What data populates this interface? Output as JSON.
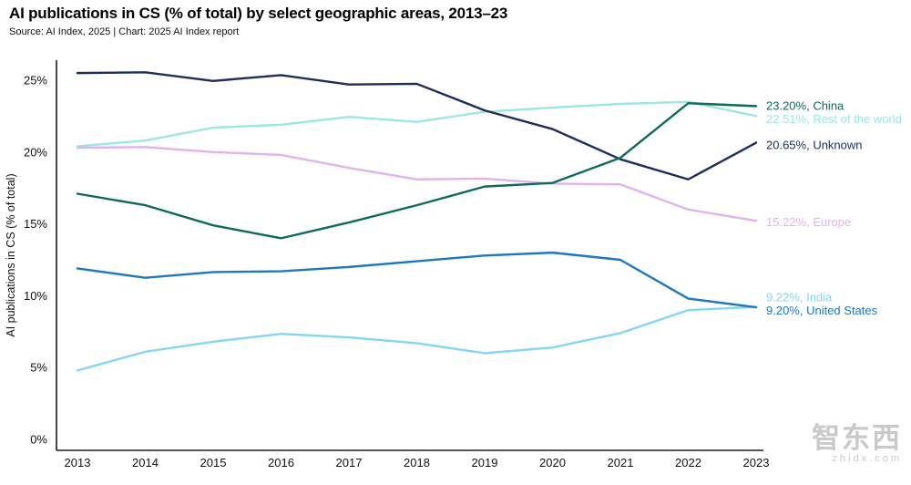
{
  "header": {
    "title": "AI publications in CS (% of total) by select geographic areas, 2013–23",
    "source": "Source: AI Index, 2025 | Chart: 2025 AI Index report"
  },
  "watermark": {
    "name": "智东西",
    "domain": "zhidx.com"
  },
  "chart_data": {
    "type": "line",
    "title": "AI publications in CS (% of total) by select geographic areas, 2013–23",
    "xlabel": "",
    "ylabel": "AI publications in CS (% of total)",
    "x": [
      2013,
      2014,
      2015,
      2016,
      2017,
      2018,
      2019,
      2020,
      2021,
      2022,
      2023
    ],
    "yticks": [
      0,
      5,
      10,
      15,
      20,
      25
    ],
    "ylim": [
      0,
      26.5
    ],
    "grid": false,
    "legend_position": "right-end-labels",
    "series": [
      {
        "id": "rest-of-world",
        "name": "Rest of the world",
        "color": "#9ce6e4",
        "end_label": "22.51%, Rest of the world",
        "label_dy": 4,
        "values": [
          20.4,
          20.8,
          21.7,
          21.9,
          22.45,
          22.1,
          22.8,
          23.1,
          23.35,
          23.5,
          22.51
        ]
      },
      {
        "id": "europe",
        "name": "Europe",
        "color": "#e0b3ef",
        "end_label": "15.22%, Europe",
        "label_dy": 2,
        "values": [
          20.3,
          20.35,
          20.0,
          19.8,
          18.9,
          18.1,
          18.15,
          17.8,
          17.75,
          16.0,
          15.22
        ]
      },
      {
        "id": "unknown",
        "name": "Unknown",
        "color": "#1c2e5e",
        "end_label": "20.65%, Unknown",
        "label_dy": 3,
        "values": [
          25.5,
          25.55,
          24.95,
          25.35,
          24.7,
          24.75,
          22.9,
          21.6,
          19.5,
          18.1,
          20.65
        ]
      },
      {
        "id": "china",
        "name": "China",
        "color": "#0e6a5b",
        "end_label": "23.20%, China",
        "label_dy": 0,
        "values": [
          17.1,
          16.3,
          14.9,
          14.0,
          15.1,
          16.3,
          17.6,
          17.85,
          19.6,
          23.4,
          23.2
        ]
      },
      {
        "id": "india",
        "name": "India",
        "color": "#83d6f4",
        "end_label": "9.22%, India",
        "label_dy": -10,
        "values": [
          4.8,
          6.1,
          6.8,
          7.35,
          7.1,
          6.7,
          6.0,
          6.4,
          7.4,
          9.0,
          9.22
        ]
      },
      {
        "id": "united-states",
        "name": "United States",
        "color": "#1d77c2",
        "end_label": "9.20%, United States",
        "label_dy": 4,
        "values": [
          11.9,
          11.25,
          11.65,
          11.7,
          12.0,
          12.4,
          12.8,
          13.0,
          12.5,
          9.8,
          9.2
        ]
      }
    ]
  }
}
